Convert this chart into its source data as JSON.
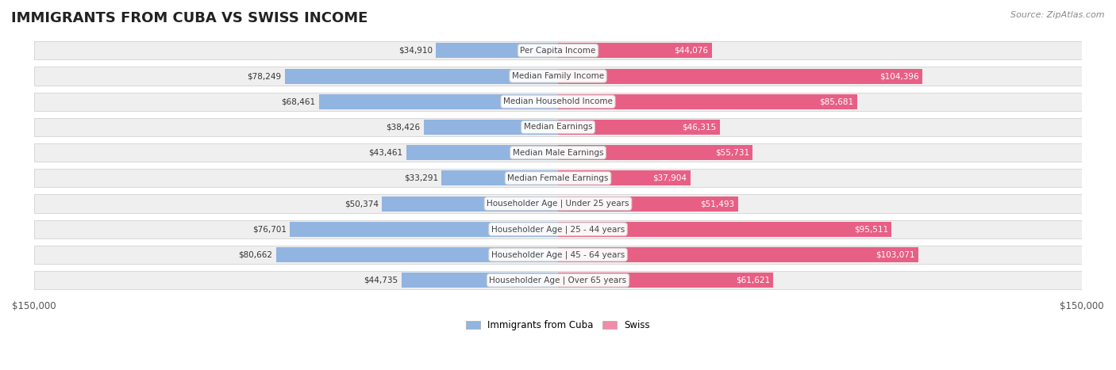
{
  "title": "IMMIGRANTS FROM CUBA VS SWISS INCOME",
  "source": "Source: ZipAtlas.com",
  "categories": [
    "Per Capita Income",
    "Median Family Income",
    "Median Household Income",
    "Median Earnings",
    "Median Male Earnings",
    "Median Female Earnings",
    "Householder Age | Under 25 years",
    "Householder Age | 25 - 44 years",
    "Householder Age | 45 - 64 years",
    "Householder Age | Over 65 years"
  ],
  "cuba_values": [
    34910,
    78249,
    68461,
    38426,
    43461,
    33291,
    50374,
    76701,
    80662,
    44735
  ],
  "swiss_values": [
    44076,
    104396,
    85681,
    46315,
    55731,
    37904,
    51493,
    95511,
    103071,
    61621
  ],
  "cuba_color": "#92b4e0",
  "swiss_color": "#f08ca8",
  "cuba_color_dark": "#5b8ec4",
  "swiss_color_dark": "#e85f85",
  "axis_max": 150000,
  "background_color": "#ffffff",
  "row_bg_color": "#f0f0f0",
  "label_fontsize": 8.5,
  "title_fontsize": 13,
  "legend_label_cuba": "Immigrants from Cuba",
  "legend_label_swiss": "Swiss"
}
